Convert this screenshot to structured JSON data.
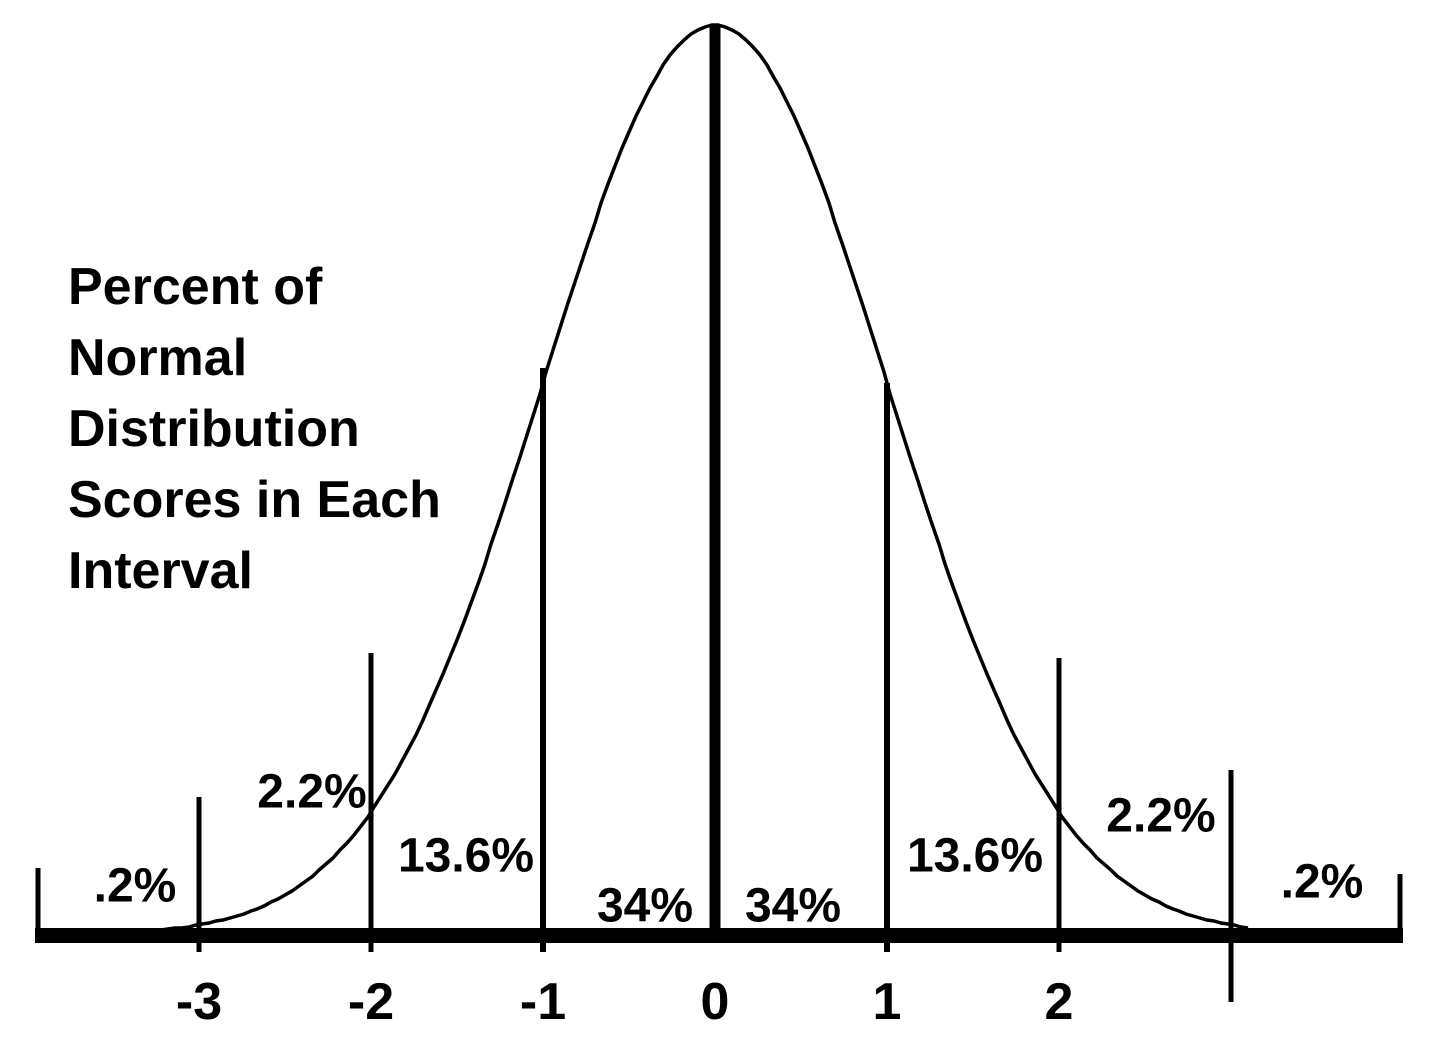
{
  "chart_data": {
    "type": "area",
    "title": "Percent of Normal Distribution Scores in Each Interval",
    "title_lines": [
      "Percent of",
      "Normal",
      "Distribution",
      "Scores in Each",
      "Interval"
    ],
    "xlabel": "",
    "ylabel": "",
    "curve": {
      "distribution": "standard normal bell curve",
      "mean": 0,
      "stddev": 1,
      "x_range": [
        -3.3,
        3.1
      ]
    },
    "x_ticks": [
      {
        "label": "-3",
        "sd": -3
      },
      {
        "label": "-2",
        "sd": -2
      },
      {
        "label": "-1",
        "sd": -1
      },
      {
        "label": "0",
        "sd": 0
      },
      {
        "label": "1",
        "sd": 1
      },
      {
        "label": "2",
        "sd": 2
      }
    ],
    "interval_labels": [
      {
        "text": ".2%",
        "interval": "below -3",
        "value": 0.2
      },
      {
        "text": "2.2%",
        "interval": "-3 to -2",
        "value": 2.2
      },
      {
        "text": "13.6%",
        "interval": "-2 to -1",
        "value": 13.6
      },
      {
        "text": "34%",
        "interval": "-1 to 0",
        "value": 34
      },
      {
        "text": "34%",
        "interval": "0 to 1",
        "value": 34
      },
      {
        "text": "13.6%",
        "interval": "1 to 2",
        "value": 13.6
      },
      {
        "text": "2.2%",
        "interval": "2 to 3",
        "value": 2.2
      },
      {
        "text": ".2%",
        "interval": "above 3",
        "value": 0.2
      }
    ],
    "grid": false,
    "legend": false,
    "colors": {
      "ink": "#000000",
      "background": "#ffffff"
    }
  }
}
